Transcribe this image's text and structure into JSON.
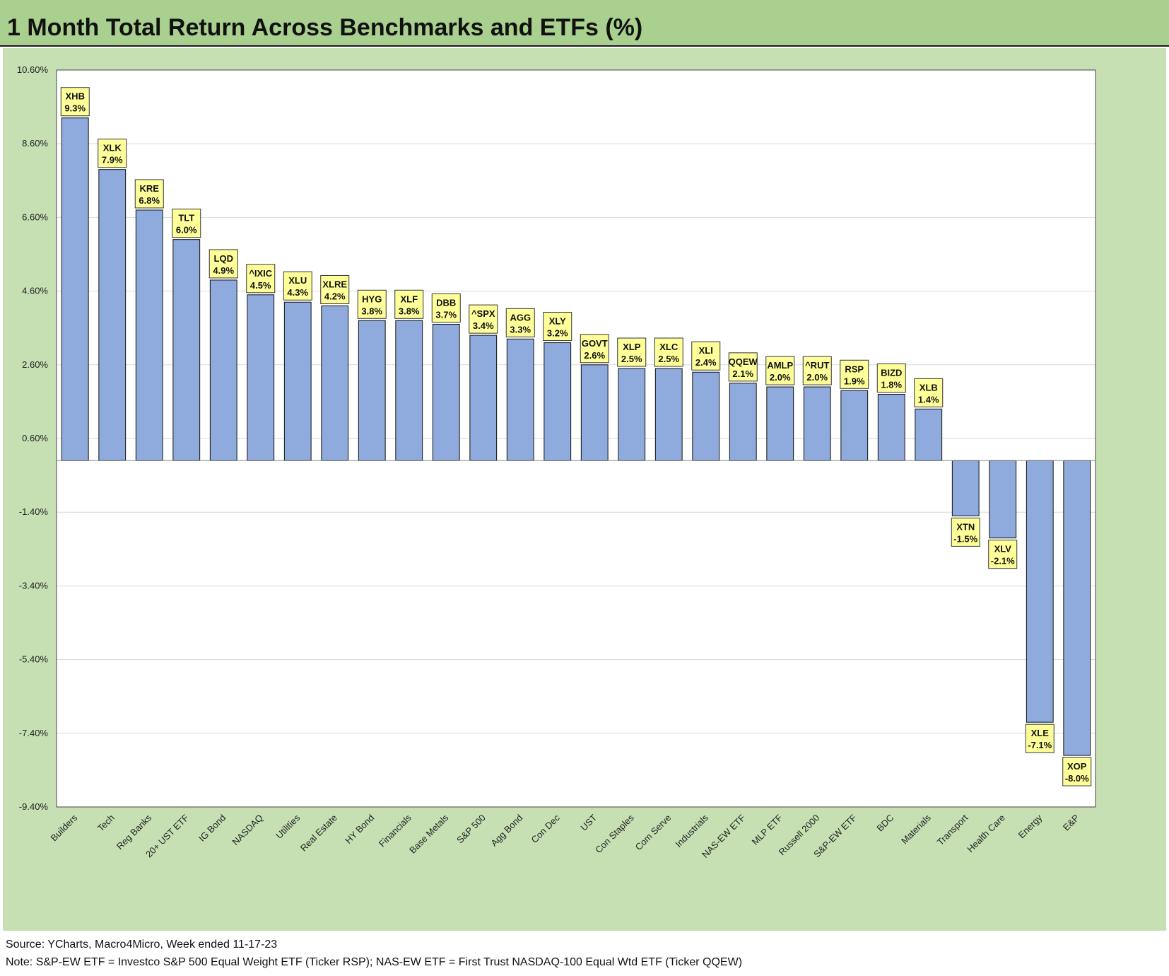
{
  "title": "1 Month Total Return Across Benchmarks and ETFs (%)",
  "notes": {
    "source": "Source: YCharts, Macro4Micro, Week ended 11-17-23",
    "note": "Note: S&P-EW ETF = Investco S&P 500 Equal Weight ETF (Ticker RSP); NAS-EW ETF = First Trust NASDAQ-100 Equal Wtd ETF (Ticker QQEW)"
  },
  "colors": {
    "bar": "#8faadc",
    "label_box": "#ffff99",
    "title_bg": "#a9d08e",
    "chart_bg": "#c6e0b4",
    "plot_bg": "#ffffff"
  },
  "chart_data": {
    "type": "bar",
    "title": "1 Month Total Return Across Benchmarks and ETFs (%)",
    "xlabel": "",
    "ylabel": "",
    "ylim": [
      -9.4,
      10.6
    ],
    "yticks": [
      "10.60%",
      "8.60%",
      "6.60%",
      "4.60%",
      "2.60%",
      "0.60%",
      "-1.40%",
      "-3.40%",
      "-5.40%",
      "-7.40%",
      "-9.40%"
    ],
    "ytick_values": [
      10.6,
      8.6,
      6.6,
      4.6,
      2.6,
      0.6,
      -1.4,
      -3.4,
      -5.4,
      -7.4,
      -9.4
    ],
    "grid": true,
    "categories": [
      "Builders",
      "Tech",
      "Reg Banks",
      "20+ UST ETF",
      "IG Bond",
      "NASDAQ",
      "Utilities",
      "Real Estate",
      "HY Bond",
      "Financials",
      "Base Metals",
      "S&P 500",
      "Agg Bond",
      "Con Dec",
      "UST",
      "Con Staples",
      "Com Serve",
      "Industrials",
      "NAS-EW ETF",
      "MLP ETF",
      "Russell 2000",
      "S&P-EW ETF",
      "BDC",
      "Materials",
      "Transport",
      "Health Care",
      "Energy",
      "E&P"
    ],
    "tickers": [
      "XHB",
      "XLK",
      "KRE",
      "TLT",
      "LQD",
      "^IXIC",
      "XLU",
      "XLRE",
      "HYG",
      "XLF",
      "DBB",
      "^SPX",
      "AGG",
      "XLY",
      "GOVT",
      "XLP",
      "XLC",
      "XLI",
      "QQEW",
      "AMLP",
      "^RUT",
      "RSP",
      "BIZD",
      "XLB",
      "XTN",
      "XLV",
      "XLE",
      "XOP"
    ],
    "values": [
      9.3,
      7.9,
      6.8,
      6.0,
      4.9,
      4.5,
      4.3,
      4.2,
      3.8,
      3.8,
      3.7,
      3.4,
      3.3,
      3.2,
      2.6,
      2.5,
      2.5,
      2.4,
      2.1,
      2.0,
      2.0,
      1.9,
      1.8,
      1.4,
      -1.5,
      -2.1,
      -7.1,
      -8.0
    ],
    "value_labels": [
      "9.3%",
      "7.9%",
      "6.8%",
      "6.0%",
      "4.9%",
      "4.5%",
      "4.3%",
      "4.2%",
      "3.8%",
      "3.8%",
      "3.7%",
      "3.4%",
      "3.3%",
      "3.2%",
      "2.6%",
      "2.5%",
      "2.5%",
      "2.4%",
      "2.1%",
      "2.0%",
      "2.0%",
      "1.9%",
      "1.8%",
      "1.4%",
      "-1.5%",
      "-2.1%",
      "-7.1%",
      "-8.0%"
    ]
  }
}
